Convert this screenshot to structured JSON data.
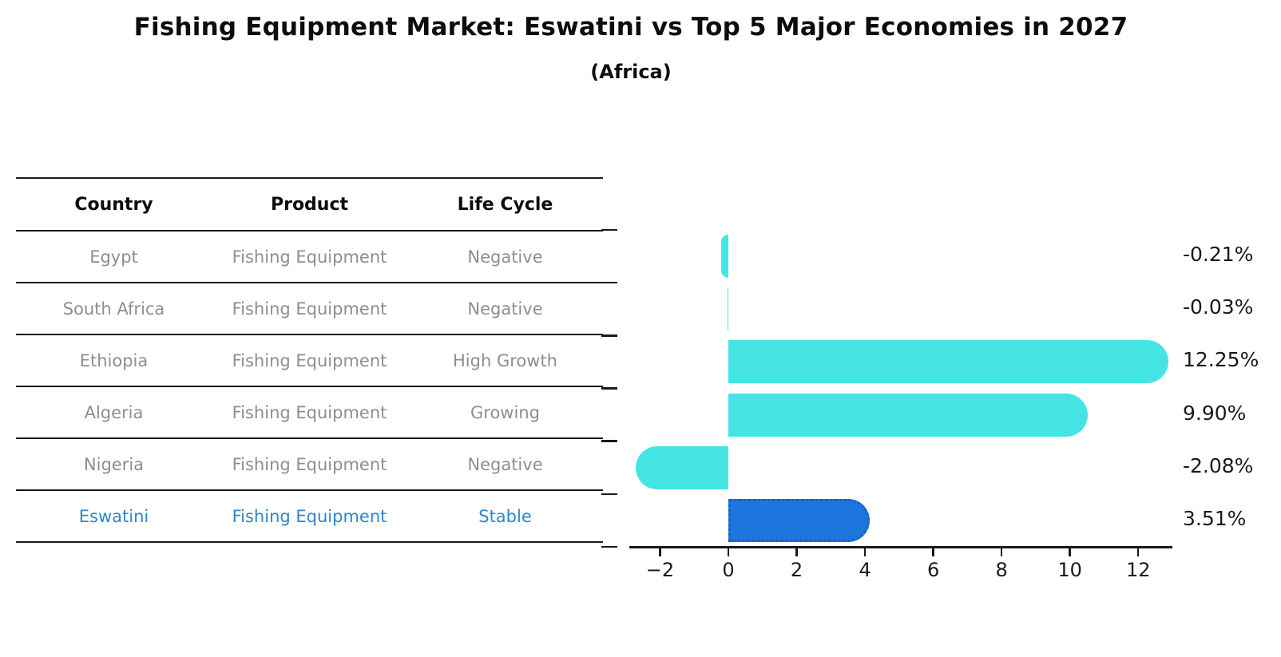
{
  "title": "Fishing Equipment Market: Eswatini vs Top 5 Major Economies in 2027",
  "subtitle": "(Africa)",
  "table": {
    "headers": [
      "Country",
      "Product",
      "Life Cycle"
    ],
    "rows": [
      {
        "country": "Egypt",
        "product": "Fishing Equipment",
        "life_cycle": "Negative",
        "highlight": false
      },
      {
        "country": "South Africa",
        "product": "Fishing Equipment",
        "life_cycle": "Negative",
        "highlight": false
      },
      {
        "country": "Ethiopia",
        "product": "Fishing Equipment",
        "life_cycle": "High Growth",
        "highlight": false
      },
      {
        "country": "Algeria",
        "product": "Fishing Equipment",
        "life_cycle": "Growing",
        "highlight": false
      },
      {
        "country": "Nigeria",
        "product": "Fishing Equipment",
        "life_cycle": "Negative",
        "highlight": false
      },
      {
        "country": "Eswatini",
        "product": "Fishing Equipment",
        "life_cycle": "Stable",
        "highlight": true
      }
    ]
  },
  "chart_data": {
    "type": "bar",
    "orientation": "horizontal",
    "title": "",
    "categories": [
      "Egypt",
      "South Africa",
      "Ethiopia",
      "Algeria",
      "Nigeria",
      "Eswatini"
    ],
    "values": [
      -0.21,
      -0.03,
      12.25,
      9.9,
      -2.08,
      3.51
    ],
    "value_labels": [
      "-0.21%",
      "-0.03%",
      "12.25%",
      "9.90%",
      "-2.08%",
      "3.51%"
    ],
    "x_ticks": [
      -2,
      0,
      2,
      4,
      6,
      8,
      10,
      12
    ],
    "xlim": [
      -2.9,
      13.0
    ],
    "grid": false,
    "legend": false,
    "highlight_index": 5
  },
  "colors": {
    "bar": "#45e4e4",
    "highlight_bar": "#1d76dd",
    "highlight_border": "#1565c0",
    "highlight_text": "#2e86c9",
    "muted_text": "#8e8e8e",
    "axis": "#1a1a1a"
  }
}
